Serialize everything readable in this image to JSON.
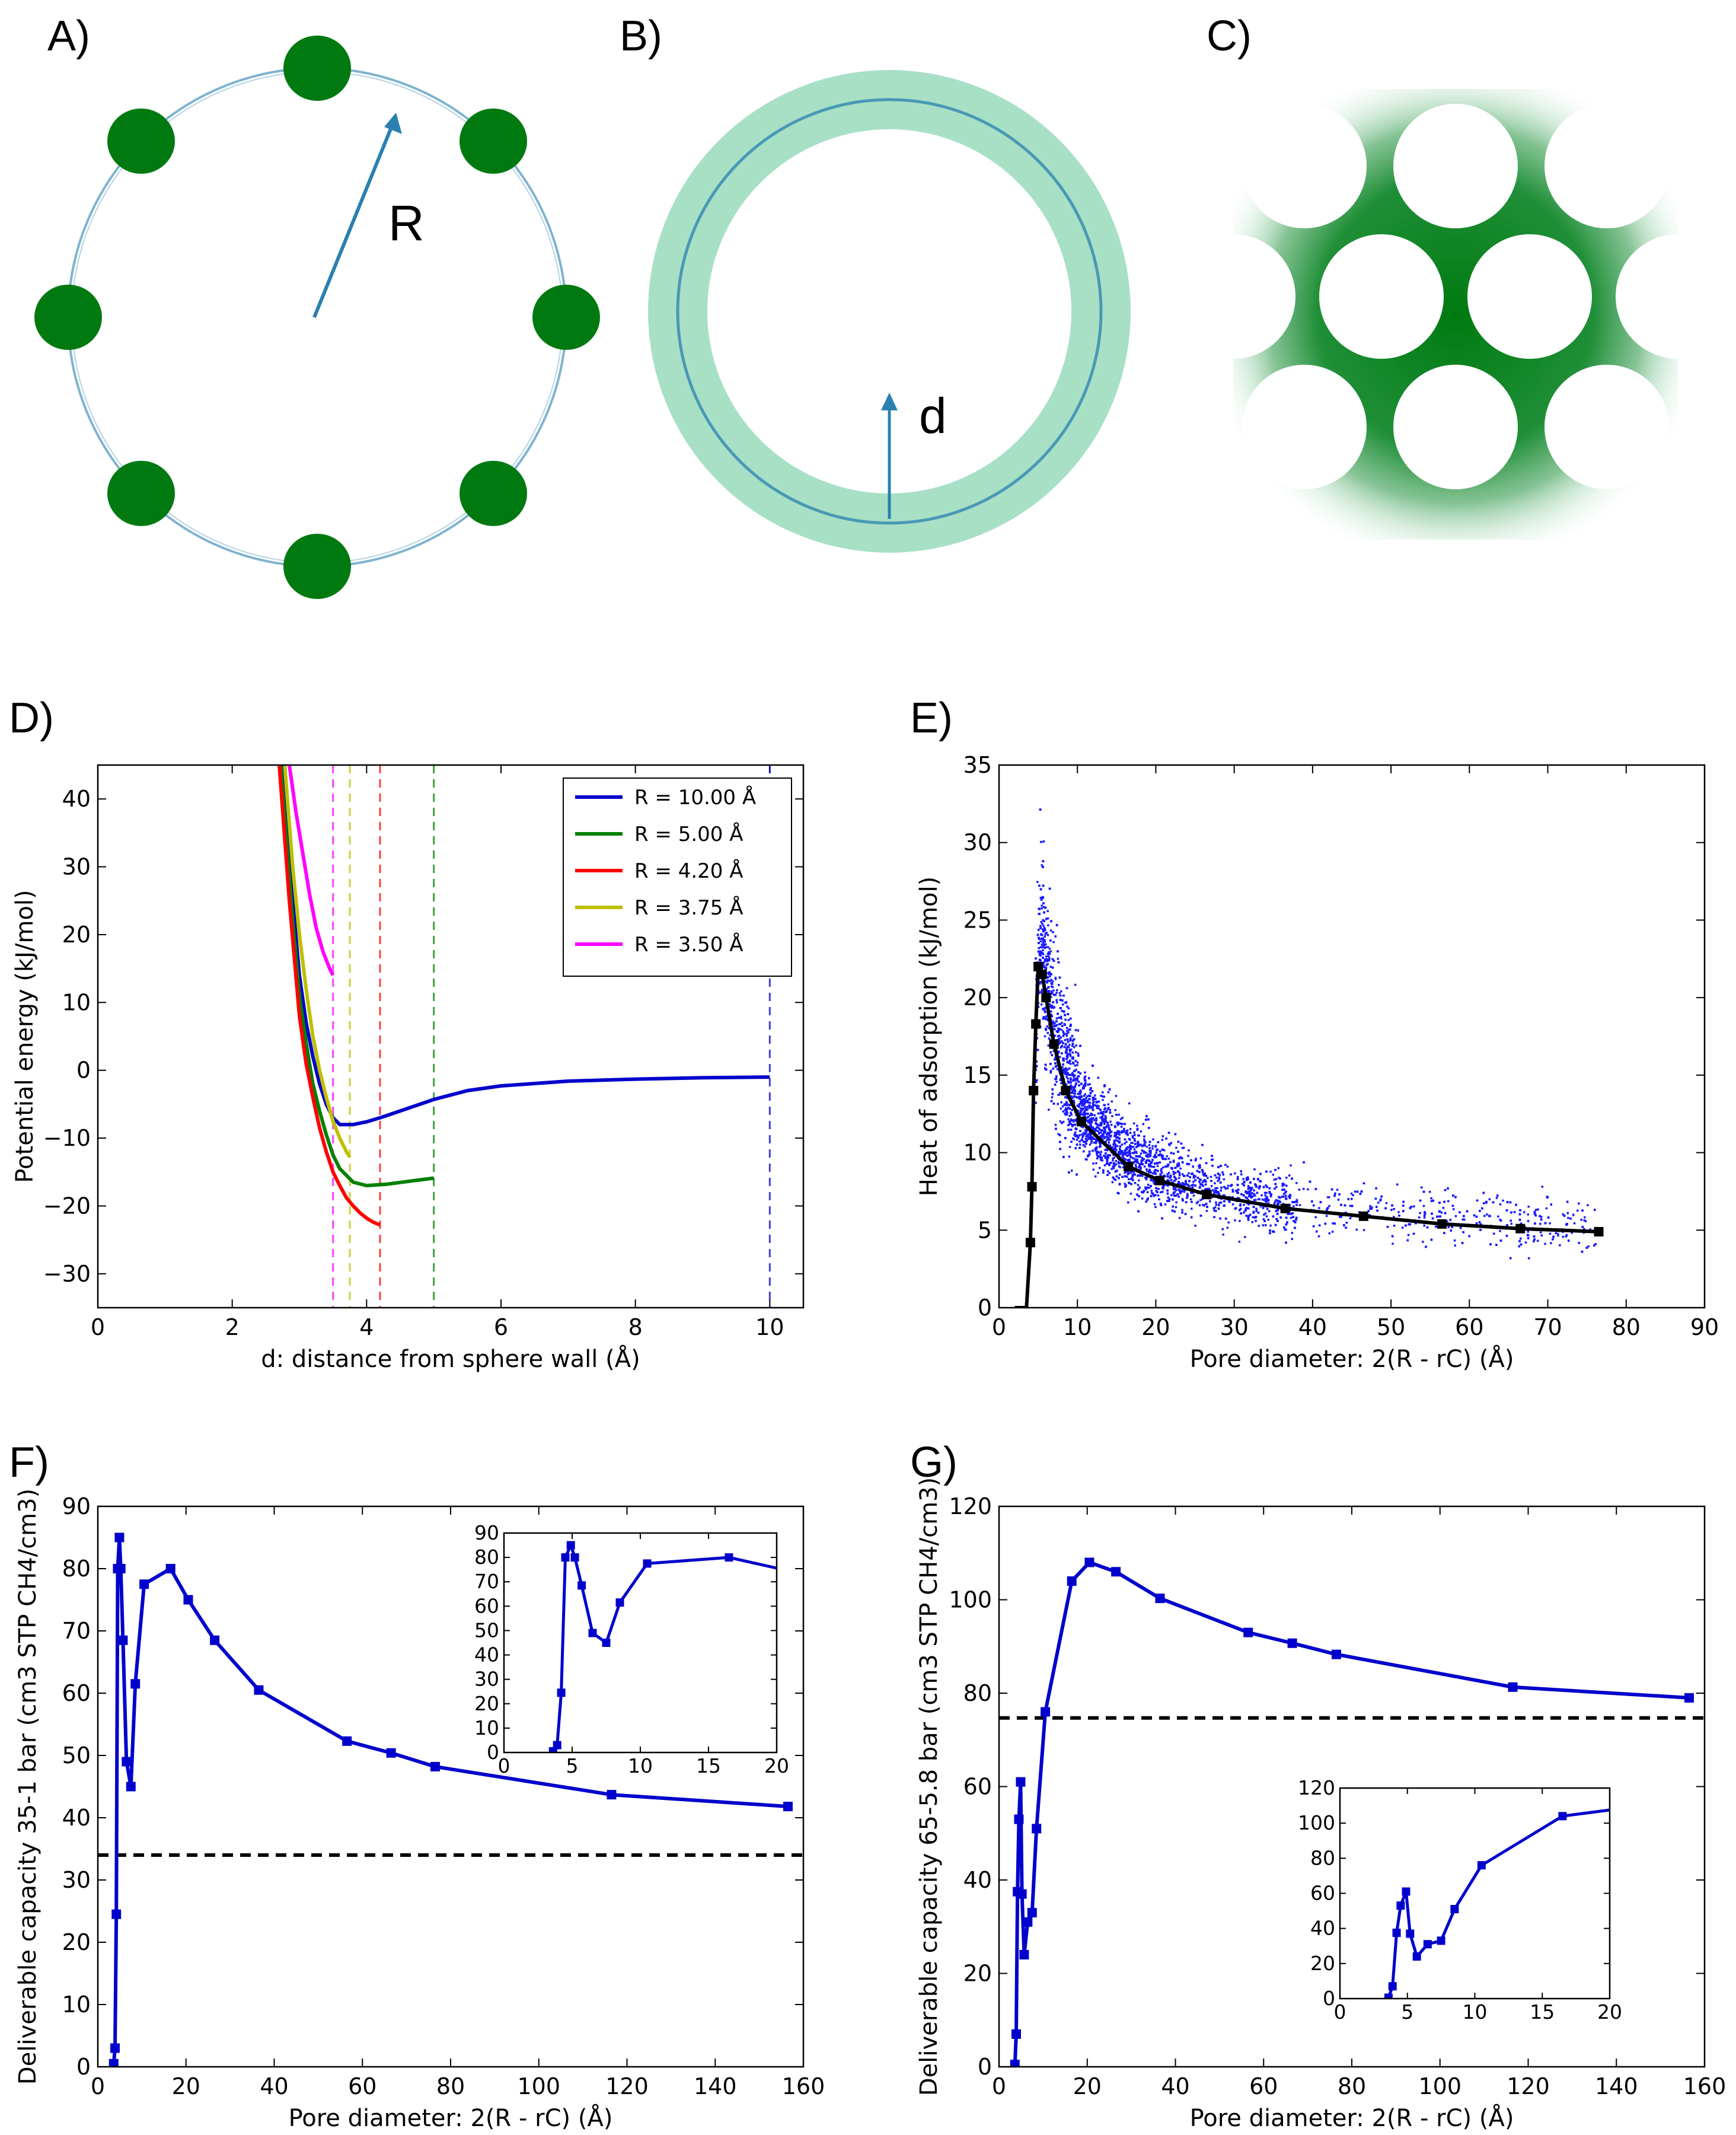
{
  "panels": {
    "A": {
      "letter": "A)",
      "radius_label": "R"
    },
    "B": {
      "letter": "B)",
      "distance_label": "d"
    },
    "C": {
      "letter": "C)"
    },
    "D": {
      "letter": "D)"
    },
    "E": {
      "letter": "E)"
    },
    "F": {
      "letter": "F)"
    },
    "G": {
      "letter": "G)"
    }
  },
  "colors": {
    "atom_green": "#007a10",
    "light_green": "#a8e0c6",
    "blue_line": "#2a80b0",
    "series_blue": "#0000cc",
    "scatter_blue": "#1a1aff",
    "black": "#000000"
  },
  "chart_data": [
    {
      "id": "D",
      "type": "line",
      "xlabel": "d: distance from sphere wall (Å)",
      "ylabel": "Potential energy (kJ/mol)",
      "xlim": [
        0,
        10.5
      ],
      "ylim": [
        -35,
        45
      ],
      "xticks": [
        0,
        2,
        4,
        6,
        8,
        10
      ],
      "yticks": [
        -30,
        -20,
        -10,
        0,
        10,
        20,
        30,
        40
      ],
      "legend_position": "top-right",
      "series": [
        {
          "name": "R = 10.00 Å",
          "color": "#0000cc",
          "vline": 10.0,
          "x": [
            2.75,
            2.9,
            3.0,
            3.1,
            3.2,
            3.3,
            3.4,
            3.5,
            3.6,
            3.8,
            4.0,
            4.2,
            4.5,
            5.0,
            5.5,
            6.0,
            7.0,
            8.0,
            9.0,
            10.0
          ],
          "y": [
            45,
            25,
            14,
            7,
            2,
            -2,
            -5,
            -7,
            -8,
            -8,
            -7.6,
            -7,
            -6,
            -4.3,
            -3,
            -2.3,
            -1.6,
            -1.3,
            -1.1,
            -1.0
          ]
        },
        {
          "name": "R = 5.00 Å",
          "color": "#008000",
          "vline": 5.0,
          "x": [
            2.72,
            2.9,
            3.0,
            3.1,
            3.2,
            3.3,
            3.4,
            3.5,
            3.6,
            3.8,
            4.0,
            4.3,
            4.6,
            5.0
          ],
          "y": [
            45,
            22,
            11,
            4,
            -2,
            -6,
            -9.5,
            -12.5,
            -14.5,
            -16.5,
            -17,
            -16.8,
            -16.4,
            -15.9
          ]
        },
        {
          "name": "R = 4.20 Å",
          "color": "#ff0000",
          "vline": 4.2,
          "x": [
            2.7,
            2.85,
            3.0,
            3.1,
            3.2,
            3.3,
            3.4,
            3.5,
            3.6,
            3.7,
            3.8,
            3.9,
            4.0,
            4.1,
            4.2
          ],
          "y": [
            45,
            25,
            8,
            1,
            -4,
            -8.5,
            -12,
            -15,
            -17,
            -18.8,
            -20,
            -21,
            -21.8,
            -22.4,
            -22.8
          ]
        },
        {
          "name": "R = 3.75 Å",
          "color": "#bfbf00",
          "vline": 3.75,
          "x": [
            2.78,
            2.9,
            3.0,
            3.1,
            3.2,
            3.3,
            3.4,
            3.5,
            3.6,
            3.7,
            3.75
          ],
          "y": [
            45,
            30,
            20,
            12,
            5,
            0,
            -4,
            -7.5,
            -10,
            -12,
            -12.8
          ]
        },
        {
          "name": "R = 3.50 Å",
          "color": "#ff00ff",
          "vline": 3.5,
          "x": [
            2.85,
            2.95,
            3.05,
            3.15,
            3.25,
            3.35,
            3.45,
            3.5
          ],
          "y": [
            45,
            38,
            32,
            26,
            21,
            17.5,
            15,
            14
          ]
        }
      ]
    },
    {
      "id": "E",
      "type": "scatter",
      "xlabel": "Pore diameter: 2(R - rC) (Å)",
      "ylabel": "Heat of adsorption (kJ/mol)",
      "xlim": [
        0,
        90
      ],
      "ylim": [
        0,
        35
      ],
      "xticks": [
        0,
        10,
        20,
        30,
        40,
        50,
        60,
        70,
        80,
        90
      ],
      "yticks": [
        0,
        5,
        10,
        15,
        20,
        25,
        30,
        35
      ],
      "series": [
        {
          "name": "",
          "kind": "mean",
          "x": [
            2,
            3.5,
            4.0,
            4.2,
            4.4,
            4.7,
            5.0,
            5.5,
            6.0,
            7.0,
            8.5,
            10.5,
            16.5,
            20.5,
            26.5,
            36.5,
            46.5,
            56.5,
            66.5,
            76.5
          ],
          "y": [
            0,
            0,
            4.2,
            7.8,
            14,
            18.3,
            22,
            21.5,
            20,
            17,
            14,
            12,
            9.1,
            8.2,
            7.3,
            6.4,
            5.9,
            5.4,
            5.1,
            4.9
          ]
        }
      ]
    },
    {
      "id": "F",
      "type": "line",
      "xlabel": "Pore diameter: 2(R - rC) (Å)",
      "ylabel": "Deliverable capacity 35-1 bar (cm3 STP CH4/cm3)",
      "xlim": [
        0,
        160
      ],
      "ylim": [
        0,
        90
      ],
      "xticks": [
        0,
        20,
        40,
        60,
        80,
        100,
        120,
        140,
        160
      ],
      "yticks": [
        0,
        10,
        20,
        30,
        40,
        50,
        60,
        70,
        80,
        90
      ],
      "hline": 34,
      "series": [
        {
          "name": "",
          "x": [
            3.6,
            3.9,
            4.2,
            4.5,
            4.9,
            5.2,
            5.7,
            6.5,
            7.5,
            8.5,
            10.5,
            16.5,
            20.5,
            26.5,
            36.5,
            56.5,
            66.5,
            76.5,
            116.5,
            156.5
          ],
          "y": [
            0.5,
            3,
            24.5,
            80,
            85,
            80,
            68.5,
            49,
            45,
            61.5,
            77.5,
            80,
            75,
            68.5,
            60.5,
            52.3,
            50.4,
            48.2,
            43.7,
            41.8
          ]
        }
      ],
      "inset": {
        "xlim": [
          0,
          20
        ],
        "ylim": [
          0,
          90
        ],
        "xticks": [
          0,
          5,
          10,
          15,
          20
        ],
        "yticks": [
          0,
          10,
          20,
          30,
          40,
          50,
          60,
          70,
          80,
          90
        ]
      }
    },
    {
      "id": "G",
      "type": "line",
      "xlabel": "Pore diameter: 2(R - rC) (Å)",
      "ylabel": "Deliverable capacity 65-5.8 bar (cm3 STP CH4/cm3)",
      "xlim": [
        0,
        160
      ],
      "ylim": [
        0,
        120
      ],
      "xticks": [
        0,
        20,
        40,
        60,
        80,
        100,
        120,
        140,
        160
      ],
      "yticks": [
        0,
        20,
        40,
        60,
        80,
        100,
        120
      ],
      "hline": 74.7,
      "series": [
        {
          "name": "",
          "x": [
            3.6,
            3.9,
            4.2,
            4.5,
            4.9,
            5.2,
            5.7,
            6.5,
            7.5,
            8.5,
            10.5,
            16.5,
            20.5,
            26.5,
            36.5,
            56.5,
            66.5,
            76.5,
            116.5,
            156.5
          ],
          "y": [
            0.5,
            7,
            37.5,
            53,
            61,
            37,
            24,
            31,
            33,
            51,
            76,
            104,
            108,
            106,
            100.3,
            93,
            90.7,
            88.3,
            81.3,
            79
          ]
        }
      ],
      "inset": {
        "xlim": [
          0,
          20
        ],
        "ylim": [
          0,
          120
        ],
        "xticks": [
          0,
          5,
          10,
          15,
          20
        ],
        "yticks": [
          0,
          20,
          40,
          60,
          80,
          100,
          120
        ]
      }
    }
  ]
}
